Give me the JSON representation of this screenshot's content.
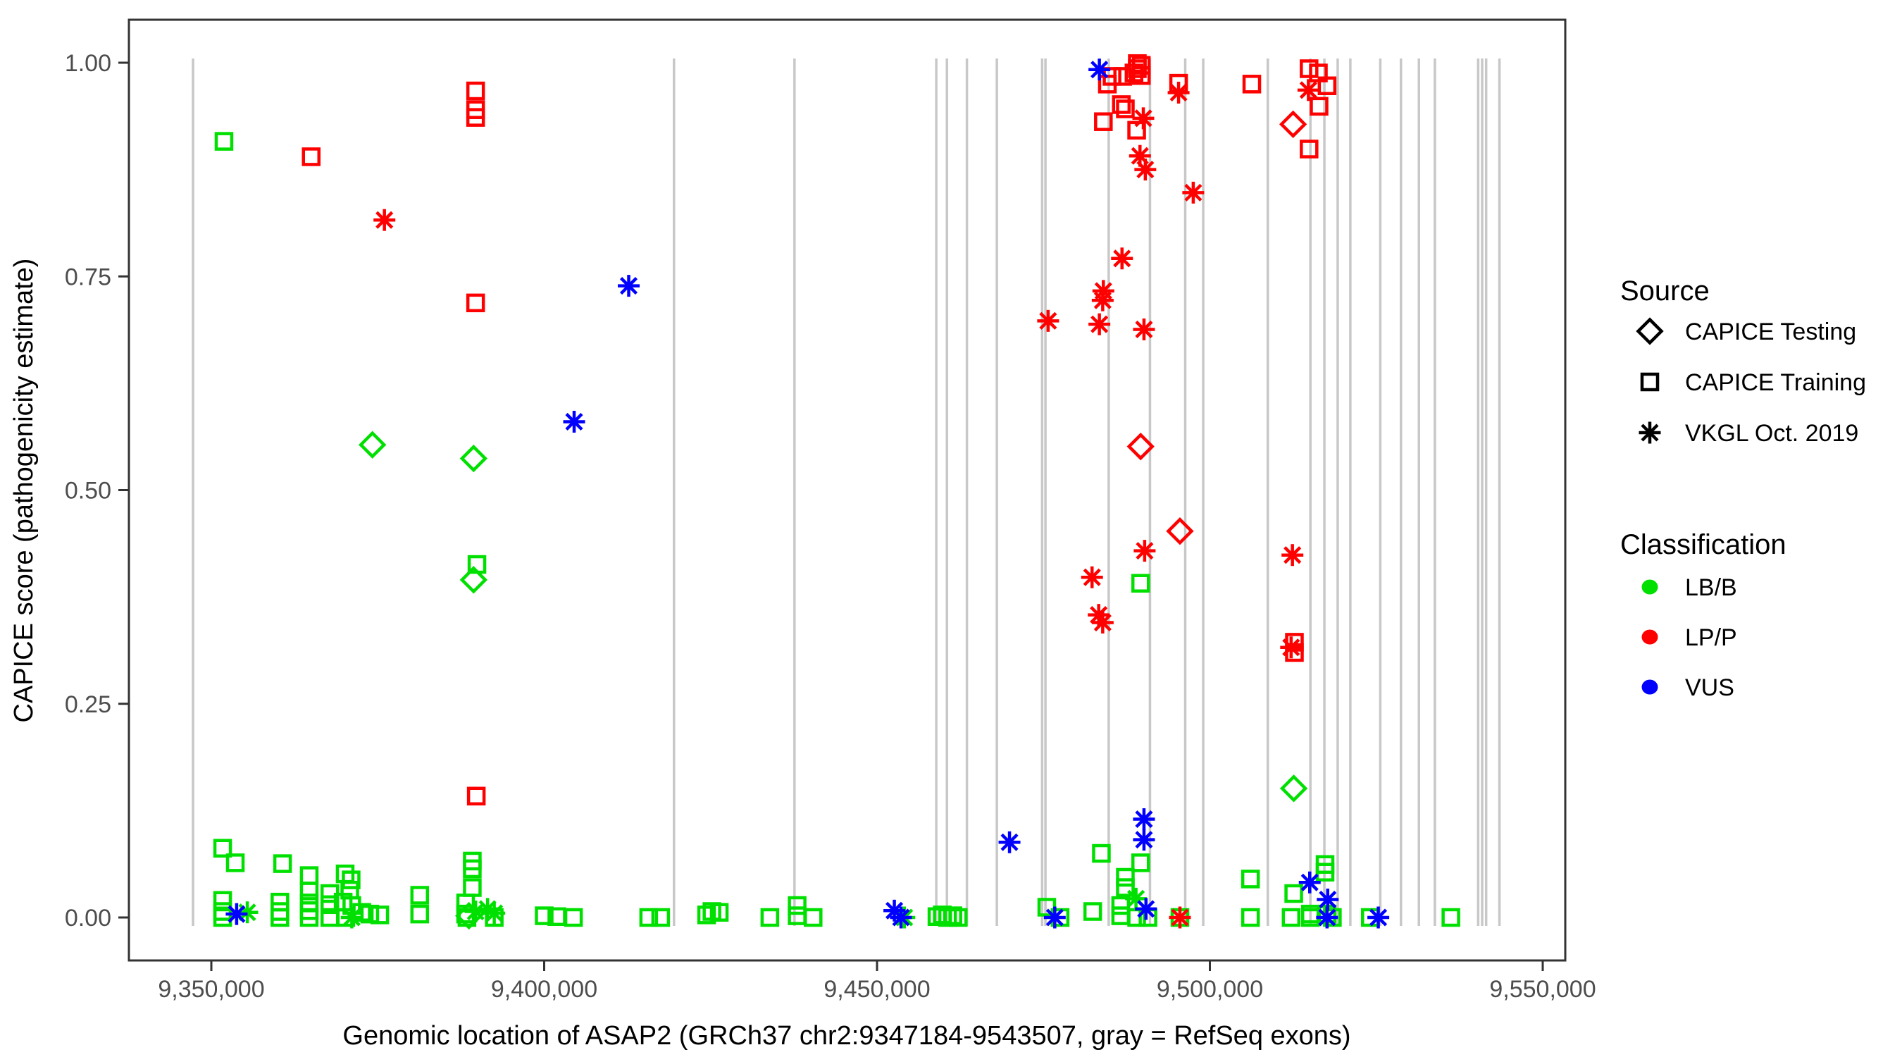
{
  "figure": {
    "background": "#ffffff",
    "panel_border_color": "#333333",
    "exon_line_color": "#c8c8c8",
    "tick_text_color": "#4d4d4d"
  },
  "chart_data": {
    "type": "scatter",
    "title": "",
    "xlabel": "Genomic location of ASAP2 (GRCh37 chr2:9347184-9543507, gray = RefSeq exons)",
    "ylabel": "CAPICE score (pathogenicity estimate)",
    "xlim_bp": [
      9337580,
      9553340
    ],
    "ylim": [
      -0.046,
      1.054
    ],
    "grid": false,
    "x_ticks": [
      {
        "value": 9350000,
        "label": "9,350,000"
      },
      {
        "value": 9400000,
        "label": "9,400,000"
      },
      {
        "value": 9450000,
        "label": "9,450,000"
      },
      {
        "value": 9500000,
        "label": "9,500,000"
      },
      {
        "value": 9550000,
        "label": "9,550,000"
      }
    ],
    "y_ticks": [
      {
        "value": 0.0,
        "label": "0.00"
      },
      {
        "value": 0.25,
        "label": "0.25"
      },
      {
        "value": 0.5,
        "label": "0.50"
      },
      {
        "value": 0.75,
        "label": "0.75"
      },
      {
        "value": 1.0,
        "label": "1.00"
      }
    ],
    "legend_source": {
      "title": "Source",
      "items": [
        {
          "label": "CAPICE Testing",
          "marker": "diamond"
        },
        {
          "label": "CAPICE Training",
          "marker": "square"
        },
        {
          "label": "VKGL Oct. 2019",
          "marker": "asterisk"
        }
      ]
    },
    "legend_classification": {
      "title": "Classification",
      "items": [
        {
          "label": "LB/B",
          "color": "#00e000"
        },
        {
          "label": "LP/P",
          "color": "#ff0000"
        },
        {
          "label": "VUS",
          "color": "#0000ff"
        }
      ]
    },
    "source_markers": {
      "testing": "diamond",
      "training": "square",
      "vkgl": "asterisk"
    },
    "classification_colors": {
      "LB/B": "#00e000",
      "LP/P": "#ff0000",
      "VUS": "#0000ff"
    },
    "refseq_exons_bp": [
      9347250,
      9419500,
      9437600,
      9458900,
      9460500,
      9463500,
      9468000,
      9474800,
      9475300,
      9484800,
      9491000,
      9496300,
      9499000,
      9508700,
      9515100,
      9517200,
      9519200,
      9521100,
      9525600,
      9528700,
      9531400,
      9533800,
      9540300,
      9540900,
      9541500,
      9543500
    ],
    "points_format": [
      "bp",
      "score",
      "source",
      "classification"
    ],
    "points": [
      [
        9351900,
        0.908,
        "training",
        "LB/B"
      ],
      [
        9351700,
        0.081,
        "training",
        "LB/B"
      ],
      [
        9353600,
        0.064,
        "training",
        "LB/B"
      ],
      [
        9351700,
        0.02,
        "training",
        "LB/B"
      ],
      [
        9351700,
        0.007,
        "training",
        "LB/B"
      ],
      [
        9351700,
        0.0,
        "training",
        "LB/B"
      ],
      [
        9360700,
        0.063,
        "training",
        "LB/B"
      ],
      [
        9360300,
        0.018,
        "training",
        "LB/B"
      ],
      [
        9360300,
        0.007,
        "training",
        "LB/B"
      ],
      [
        9360300,
        0.0,
        "training",
        "LB/B"
      ],
      [
        9364700,
        0.049,
        "training",
        "LB/B"
      ],
      [
        9364700,
        0.031,
        "training",
        "LB/B"
      ],
      [
        9364700,
        0.017,
        "training",
        "LB/B"
      ],
      [
        9364700,
        0.008,
        "training",
        "LB/B"
      ],
      [
        9364700,
        0.0,
        "training",
        "LB/B"
      ],
      [
        9367800,
        0.028,
        "training",
        "LB/B"
      ],
      [
        9367800,
        0.015,
        "training",
        "LB/B"
      ],
      [
        9367800,
        0.0,
        "training",
        "LB/B"
      ],
      [
        9370100,
        0.051,
        "training",
        "LB/B"
      ],
      [
        9371000,
        0.044,
        "training",
        "LB/B"
      ],
      [
        9370800,
        0.032,
        "training",
        "LB/B"
      ],
      [
        9369800,
        0.018,
        "training",
        "LB/B"
      ],
      [
        9371100,
        0.014,
        "training",
        "LB/B"
      ],
      [
        9370200,
        0.0,
        "training",
        "LB/B"
      ],
      [
        9372600,
        0.006,
        "training",
        "LB/B"
      ],
      [
        9373800,
        0.004,
        "training",
        "LB/B"
      ],
      [
        9375300,
        0.003,
        "training",
        "LB/B"
      ],
      [
        9381300,
        0.026,
        "training",
        "LB/B"
      ],
      [
        9381300,
        0.004,
        "training",
        "LB/B"
      ],
      [
        9389200,
        0.066,
        "training",
        "LB/B"
      ],
      [
        9389200,
        0.057,
        "training",
        "LB/B"
      ],
      [
        9389200,
        0.035,
        "training",
        "LB/B"
      ],
      [
        9389900,
        0.413,
        "training",
        "LB/B"
      ],
      [
        9388200,
        0.017,
        "training",
        "LB/B"
      ],
      [
        9388200,
        0.004,
        "training",
        "LB/B"
      ],
      [
        9388400,
        0.0,
        "training",
        "LB/B"
      ],
      [
        9392500,
        0.0,
        "training",
        "LB/B"
      ],
      [
        9400000,
        0.002,
        "training",
        "LB/B"
      ],
      [
        9401900,
        0.001,
        "training",
        "LB/B"
      ],
      [
        9404400,
        0.0,
        "training",
        "LB/B"
      ],
      [
        9415700,
        0.0,
        "training",
        "LB/B"
      ],
      [
        9417500,
        0.0,
        "training",
        "LB/B"
      ],
      [
        9424400,
        0.003,
        "training",
        "LB/B"
      ],
      [
        9425200,
        0.007,
        "training",
        "LB/B"
      ],
      [
        9426300,
        0.006,
        "training",
        "LB/B"
      ],
      [
        9433900,
        0.0,
        "training",
        "LB/B"
      ],
      [
        9438000,
        0.014,
        "training",
        "LB/B"
      ],
      [
        9438000,
        0.002,
        "training",
        "LB/B"
      ],
      [
        9440400,
        0.0,
        "training",
        "LB/B"
      ],
      [
        9459000,
        0.001,
        "training",
        "LB/B"
      ],
      [
        9459800,
        0.003,
        "training",
        "LB/B"
      ],
      [
        9460600,
        0.0,
        "training",
        "LB/B"
      ],
      [
        9461400,
        0.002,
        "training",
        "LB/B"
      ],
      [
        9462200,
        0.0,
        "training",
        "LB/B"
      ],
      [
        9475500,
        0.012,
        "training",
        "LB/B"
      ],
      [
        9477500,
        0.0,
        "training",
        "LB/B"
      ],
      [
        9482400,
        0.007,
        "training",
        "LB/B"
      ],
      [
        9483700,
        0.075,
        "training",
        "LB/B"
      ],
      [
        9489600,
        0.064,
        "training",
        "LB/B"
      ],
      [
        9487300,
        0.047,
        "training",
        "LB/B"
      ],
      [
        9487300,
        0.035,
        "training",
        "LB/B"
      ],
      [
        9486600,
        0.014,
        "training",
        "LB/B"
      ],
      [
        9486600,
        0.002,
        "training",
        "LB/B"
      ],
      [
        9489000,
        0.0,
        "training",
        "LB/B"
      ],
      [
        9490700,
        0.0,
        "training",
        "LB/B"
      ],
      [
        9489600,
        0.391,
        "training",
        "LB/B"
      ],
      [
        9495500,
        0.0,
        "training",
        "LB/B"
      ],
      [
        9506100,
        0.045,
        "training",
        "LB/B"
      ],
      [
        9506100,
        0.0,
        "training",
        "LB/B"
      ],
      [
        9512600,
        0.028,
        "training",
        "LB/B"
      ],
      [
        9512200,
        0.0,
        "training",
        "LB/B"
      ],
      [
        9515100,
        0.004,
        "training",
        "LB/B"
      ],
      [
        9515100,
        0.0,
        "training",
        "LB/B"
      ],
      [
        9517300,
        0.062,
        "training",
        "LB/B"
      ],
      [
        9517300,
        0.053,
        "training",
        "LB/B"
      ],
      [
        9517600,
        0.004,
        "training",
        "LB/B"
      ],
      [
        9518400,
        0.0,
        "training",
        "LB/B"
      ],
      [
        9524100,
        0.0,
        "training",
        "LB/B"
      ],
      [
        9536200,
        0.0,
        "training",
        "LB/B"
      ],
      [
        9374200,
        0.553,
        "testing",
        "LB/B"
      ],
      [
        9389400,
        0.537,
        "testing",
        "LB/B"
      ],
      [
        9389400,
        0.395,
        "testing",
        "LB/B"
      ],
      [
        9388700,
        0.002,
        "testing",
        "LB/B"
      ],
      [
        9512600,
        0.151,
        "testing",
        "LB/B"
      ],
      [
        9355400,
        0.006,
        "vkgl",
        "LB/B"
      ],
      [
        9371100,
        0.0,
        "vkgl",
        "LB/B"
      ],
      [
        9389700,
        0.007,
        "vkgl",
        "LB/B"
      ],
      [
        9391500,
        0.01,
        "vkgl",
        "LB/B"
      ],
      [
        9392500,
        0.005,
        "vkgl",
        "LB/B"
      ],
      [
        9454100,
        0.0,
        "vkgl",
        "LB/B"
      ],
      [
        9488900,
        0.022,
        "vkgl",
        "LB/B"
      ],
      [
        9365000,
        0.89,
        "training",
        "LP/P"
      ],
      [
        9389700,
        0.967,
        "training",
        "LP/P"
      ],
      [
        9389700,
        0.945,
        "training",
        "LP/P"
      ],
      [
        9389700,
        0.936,
        "training",
        "LP/P"
      ],
      [
        9389700,
        0.719,
        "training",
        "LP/P"
      ],
      [
        9389800,
        0.142,
        "training",
        "LP/P"
      ],
      [
        9485300,
        0.984,
        "training",
        "LP/P"
      ],
      [
        9486900,
        0.984,
        "training",
        "LP/P"
      ],
      [
        9484600,
        0.975,
        "training",
        "LP/P"
      ],
      [
        9489100,
        0.999,
        "training",
        "LP/P"
      ],
      [
        9489700,
        0.997,
        "training",
        "LP/P"
      ],
      [
        9489100,
        0.993,
        "training",
        "LP/P"
      ],
      [
        9488600,
        0.988,
        "training",
        "LP/P"
      ],
      [
        9489700,
        0.985,
        "training",
        "LP/P"
      ],
      [
        9495300,
        0.976,
        "training",
        "LP/P"
      ],
      [
        9486700,
        0.951,
        "training",
        "LP/P"
      ],
      [
        9487300,
        0.946,
        "training",
        "LP/P"
      ],
      [
        9484000,
        0.931,
        "training",
        "LP/P"
      ],
      [
        9489000,
        0.921,
        "training",
        "LP/P"
      ],
      [
        9506300,
        0.975,
        "training",
        "LP/P"
      ],
      [
        9514900,
        0.993,
        "training",
        "LP/P"
      ],
      [
        9516300,
        0.988,
        "training",
        "LP/P"
      ],
      [
        9517600,
        0.973,
        "training",
        "LP/P"
      ],
      [
        9516400,
        0.949,
        "training",
        "LP/P"
      ],
      [
        9514900,
        0.899,
        "training",
        "LP/P"
      ],
      [
        9512700,
        0.322,
        "training",
        "LP/P"
      ],
      [
        9512700,
        0.31,
        "training",
        "LP/P"
      ],
      [
        9512500,
        0.928,
        "testing",
        "LP/P"
      ],
      [
        9489600,
        0.551,
        "testing",
        "LP/P"
      ],
      [
        9495500,
        0.452,
        "testing",
        "LP/P"
      ],
      [
        9376000,
        0.816,
        "vkgl",
        "LP/P"
      ],
      [
        9514800,
        0.968,
        "vkgl",
        "LP/P"
      ],
      [
        9495300,
        0.965,
        "vkgl",
        "LP/P"
      ],
      [
        9490000,
        0.935,
        "vkgl",
        "LP/P"
      ],
      [
        9489500,
        0.891,
        "vkgl",
        "LP/P"
      ],
      [
        9490300,
        0.875,
        "vkgl",
        "LP/P"
      ],
      [
        9497500,
        0.848,
        "vkgl",
        "LP/P"
      ],
      [
        9486800,
        0.771,
        "vkgl",
        "LP/P"
      ],
      [
        9484000,
        0.733,
        "vkgl",
        "LP/P"
      ],
      [
        9483900,
        0.722,
        "vkgl",
        "LP/P"
      ],
      [
        9483400,
        0.694,
        "vkgl",
        "LP/P"
      ],
      [
        9490100,
        0.688,
        "vkgl",
        "LP/P"
      ],
      [
        9475700,
        0.698,
        "vkgl",
        "LP/P"
      ],
      [
        9490200,
        0.429,
        "vkgl",
        "LP/P"
      ],
      [
        9482300,
        0.398,
        "vkgl",
        "LP/P"
      ],
      [
        9483300,
        0.354,
        "vkgl",
        "LP/P"
      ],
      [
        9483900,
        0.345,
        "vkgl",
        "LP/P"
      ],
      [
        9512400,
        0.424,
        "vkgl",
        "LP/P"
      ],
      [
        9512200,
        0.316,
        "vkgl",
        "LP/P"
      ],
      [
        9495500,
        0.0,
        "vkgl",
        "LP/P"
      ],
      [
        9483400,
        0.992,
        "vkgl",
        "VUS"
      ],
      [
        9412700,
        0.739,
        "vkgl",
        "VUS"
      ],
      [
        9404500,
        0.58,
        "vkgl",
        "VUS"
      ],
      [
        9353800,
        0.004,
        "vkgl",
        "VUS"
      ],
      [
        9452600,
        0.008,
        "vkgl",
        "VUS"
      ],
      [
        9453600,
        0.0,
        "vkgl",
        "VUS"
      ],
      [
        9469900,
        0.088,
        "vkgl",
        "VUS"
      ],
      [
        9476700,
        0.0,
        "vkgl",
        "VUS"
      ],
      [
        9490100,
        0.115,
        "vkgl",
        "VUS"
      ],
      [
        9490100,
        0.091,
        "vkgl",
        "VUS"
      ],
      [
        9490400,
        0.01,
        "vkgl",
        "VUS"
      ],
      [
        9515000,
        0.041,
        "vkgl",
        "VUS"
      ],
      [
        9517700,
        0.021,
        "vkgl",
        "VUS"
      ],
      [
        9517600,
        0.0,
        "vkgl",
        "VUS"
      ],
      [
        9525300,
        0.0,
        "vkgl",
        "VUS"
      ]
    ]
  }
}
